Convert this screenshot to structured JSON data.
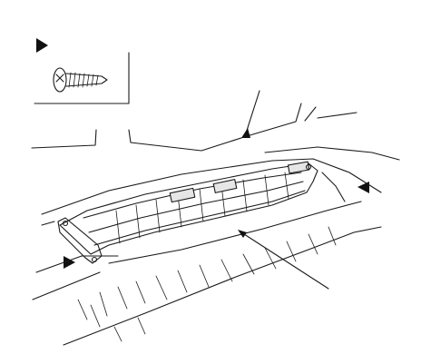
{
  "diagram": {
    "legend_box": {
      "icon": "tapping-screw-icon",
      "marker": "triangle-marker-icon"
    },
    "markers": [
      "triangle-marker-icon",
      "triangle-marker-icon",
      "triangle-marker-icon"
    ],
    "leaders": 2,
    "stroke_color": "#1a1a1a",
    "background": "#ffffff"
  }
}
